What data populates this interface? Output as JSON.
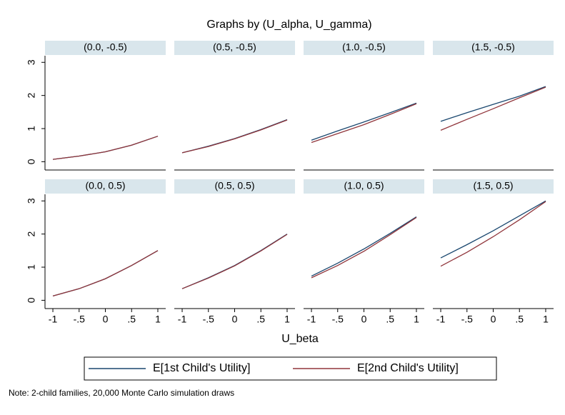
{
  "title": "Graphs by (U_alpha, U_gamma)",
  "x_label": "U_beta",
  "note": "Note: 2-child families, 20,000 Monte Carlo simulation draws",
  "chart_data": [
    {
      "type": "line",
      "title": "(0.0, -0.5)",
      "x": [
        -1,
        -0.5,
        0,
        0.5,
        1
      ],
      "xlim": [
        -1.15,
        1.15
      ],
      "ylim": [
        -0.25,
        3.2
      ],
      "yticks": [
        0,
        1,
        2,
        3
      ],
      "series": [
        {
          "name": "E[1st Child's Utility]",
          "color": "#1a476f",
          "values": [
            0.07,
            0.17,
            0.3,
            0.5,
            0.77
          ]
        },
        {
          "name": "E[2nd Child's Utility]",
          "color": "#90353b",
          "values": [
            0.07,
            0.17,
            0.3,
            0.5,
            0.77
          ]
        }
      ]
    },
    {
      "type": "line",
      "title": "(0.5, -0.5)",
      "x": [
        -1,
        -0.5,
        0,
        0.5,
        1
      ],
      "xlim": [
        -1.15,
        1.15
      ],
      "ylim": [
        -0.25,
        3.2
      ],
      "series": [
        {
          "color": "#1a476f",
          "values": [
            0.27,
            0.47,
            0.7,
            0.97,
            1.27
          ]
        },
        {
          "color": "#90353b",
          "values": [
            0.27,
            0.46,
            0.69,
            0.96,
            1.26
          ]
        }
      ]
    },
    {
      "type": "line",
      "title": "(1.0, -0.5)",
      "x": [
        -1,
        -0.5,
        0,
        0.5,
        1
      ],
      "xlim": [
        -1.15,
        1.15
      ],
      "ylim": [
        -0.25,
        3.2
      ],
      "series": [
        {
          "color": "#1a476f",
          "values": [
            0.65,
            0.93,
            1.2,
            1.48,
            1.77
          ]
        },
        {
          "color": "#90353b",
          "values": [
            0.58,
            0.85,
            1.12,
            1.43,
            1.75
          ]
        }
      ]
    },
    {
      "type": "line",
      "title": "(1.5, -0.5)",
      "x": [
        -1,
        -0.5,
        0,
        0.5,
        1
      ],
      "xlim": [
        -1.15,
        1.15
      ],
      "ylim": [
        -0.25,
        3.2
      ],
      "series": [
        {
          "color": "#1a476f",
          "values": [
            1.22,
            1.48,
            1.73,
            1.98,
            2.27
          ]
        },
        {
          "color": "#90353b",
          "values": [
            0.95,
            1.28,
            1.6,
            1.93,
            2.25
          ]
        }
      ]
    },
    {
      "type": "line",
      "title": "(0.0, 0.5)",
      "x": [
        -1,
        -0.5,
        0,
        0.5,
        1
      ],
      "xlim": [
        -1.15,
        1.15
      ],
      "ylim": [
        -0.25,
        3.2
      ],
      "yticks": [
        0,
        1,
        2,
        3
      ],
      "xticks": [
        -1,
        {
          "value": -0.5,
          "label": "-.5"
        },
        0,
        {
          "value": 0.5,
          "label": ".5"
        },
        1
      ],
      "series": [
        {
          "color": "#1a476f",
          "values": [
            0.13,
            0.35,
            0.65,
            1.05,
            1.5
          ]
        },
        {
          "color": "#90353b",
          "values": [
            0.13,
            0.35,
            0.65,
            1.05,
            1.5
          ]
        }
      ]
    },
    {
      "type": "line",
      "title": "(0.5, 0.5)",
      "x": [
        -1,
        -0.5,
        0,
        0.5,
        1
      ],
      "xlim": [
        -1.15,
        1.15
      ],
      "ylim": [
        -0.25,
        3.2
      ],
      "xticks": [
        -1,
        {
          "value": -0.5,
          "label": "-.5"
        },
        0,
        {
          "value": 0.5,
          "label": ".5"
        },
        1
      ],
      "series": [
        {
          "color": "#1a476f",
          "values": [
            0.35,
            0.68,
            1.05,
            1.5,
            2.0
          ]
        },
        {
          "color": "#90353b",
          "values": [
            0.35,
            0.67,
            1.04,
            1.49,
            1.99
          ]
        }
      ]
    },
    {
      "type": "line",
      "title": "(1.0, 0.5)",
      "x": [
        -1,
        -0.5,
        0,
        0.5,
        1
      ],
      "xlim": [
        -1.15,
        1.15
      ],
      "ylim": [
        -0.25,
        3.2
      ],
      "xticks": [
        -1,
        {
          "value": -0.5,
          "label": "-.5"
        },
        0,
        {
          "value": 0.5,
          "label": ".5"
        },
        1
      ],
      "series": [
        {
          "color": "#1a476f",
          "values": [
            0.73,
            1.12,
            1.55,
            2.02,
            2.52
          ]
        },
        {
          "color": "#90353b",
          "values": [
            0.68,
            1.05,
            1.48,
            1.98,
            2.5
          ]
        }
      ]
    },
    {
      "type": "line",
      "title": "(1.5, 0.5)",
      "x": [
        -1,
        -0.5,
        0,
        0.5,
        1
      ],
      "xlim": [
        -1.15,
        1.15
      ],
      "ylim": [
        -0.25,
        3.2
      ],
      "xticks": [
        -1,
        {
          "value": -0.5,
          "label": "-.5"
        },
        0,
        {
          "value": 0.5,
          "label": ".5"
        },
        1
      ],
      "series": [
        {
          "color": "#1a476f",
          "values": [
            1.28,
            1.68,
            2.1,
            2.55,
            3.0
          ]
        },
        {
          "color": "#90353b",
          "values": [
            1.03,
            1.45,
            1.92,
            2.43,
            2.98
          ]
        }
      ]
    }
  ]
}
